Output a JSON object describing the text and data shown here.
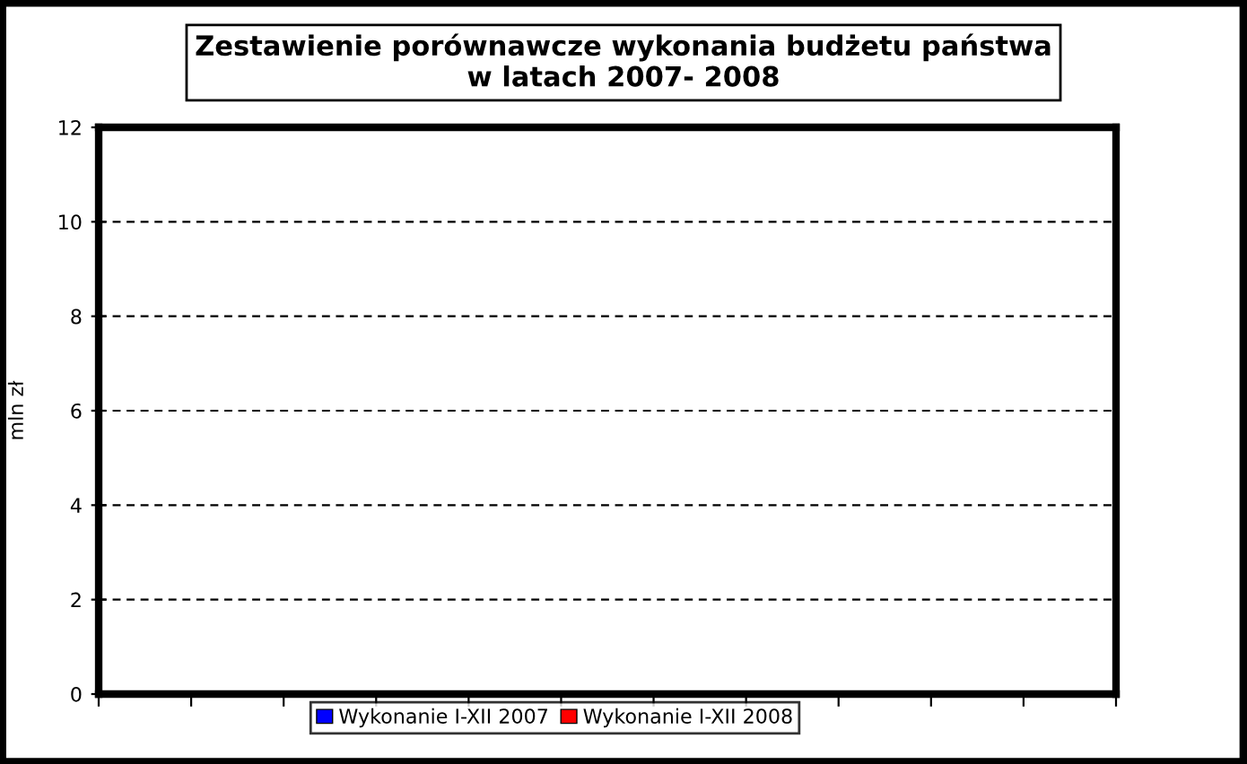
{
  "chart_data": {
    "type": "bar",
    "title": "Zestawienie porównawcze wykonania budżetu państwa\nw latach 2007- 2008",
    "ylabel": "mln zł",
    "categories": [
      null,
      null,
      null,
      null,
      null,
      null,
      null,
      null,
      null,
      null,
      null
    ],
    "series": [
      {
        "name": "Wykonanie I-XII 2007",
        "color": "#0000ff",
        "values": [
          null,
          null,
          null,
          null,
          null,
          null,
          null,
          null,
          null,
          null,
          null
        ]
      },
      {
        "name": "Wykonanie I-XII 2008",
        "color": "#ff0000",
        "values": [
          null,
          null,
          null,
          null,
          null,
          null,
          null,
          null,
          null,
          null,
          null
        ]
      }
    ],
    "ylim": [
      0,
      12
    ],
    "yticks": [
      0,
      2,
      4,
      6,
      8,
      10,
      12
    ],
    "grid": "y",
    "legend": "bottom"
  }
}
